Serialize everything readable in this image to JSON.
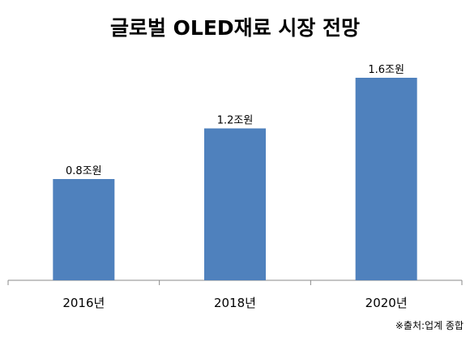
{
  "chart_data": {
    "type": "bar",
    "title": "글로벌 OLED재료 시장 전망",
    "categories": [
      "2016년",
      "2018년",
      "2020년"
    ],
    "values": [
      0.8,
      1.2,
      1.6
    ],
    "data_labels": [
      "0.8조원",
      "1.2조원",
      "1.6조원"
    ],
    "xlabel": "",
    "ylabel": "",
    "ylim": [
      0,
      2
    ],
    "grid": false,
    "legend": "none",
    "bar_color": "#4F81BD",
    "axis_color": "#888888"
  },
  "source_note": "※출처:업계 종합"
}
